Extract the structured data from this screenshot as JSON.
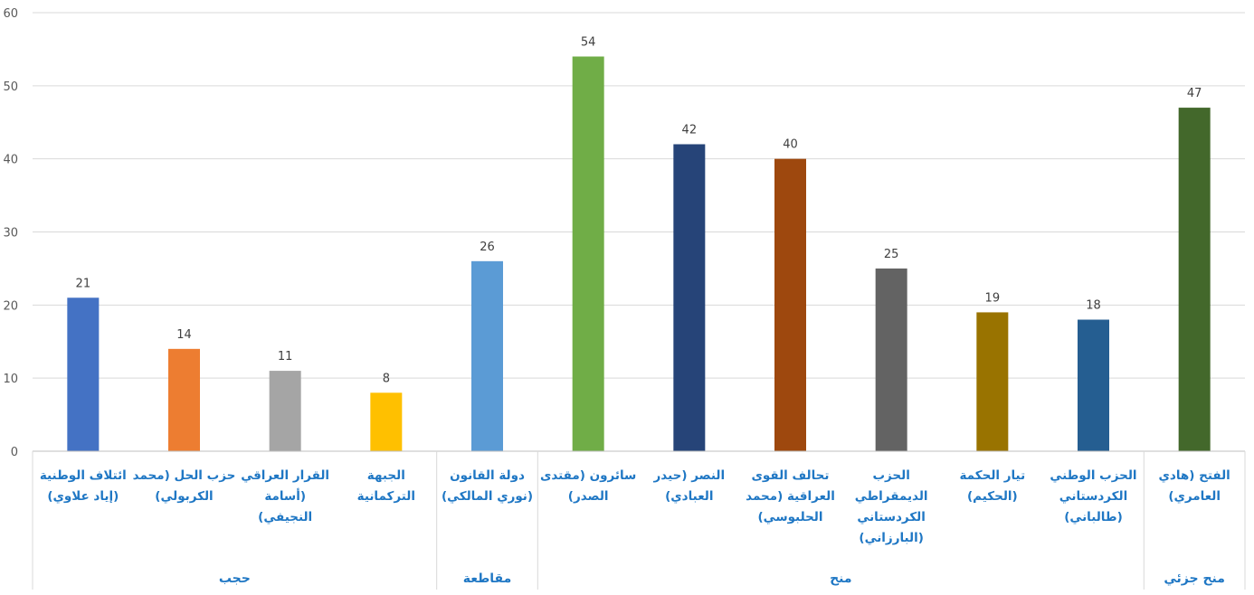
{
  "chart_data": {
    "type": "bar",
    "categories": [
      [
        "ائتلاف الوطنية",
        "(إياد علاوي)"
      ],
      [
        "حزب الحل (محمد",
        "الكربولي)"
      ],
      [
        "القرار العراقي",
        "(أسامة",
        "النجيفي)"
      ],
      [
        "الجبهة",
        "التركمانية"
      ],
      [
        "دولة القانون",
        "(نوري المالكي)"
      ],
      [
        "سائرون (مقتدى",
        "الصدر)"
      ],
      [
        "النصر (حيدر",
        "العبادي)"
      ],
      [
        "تحالف القوى",
        "العراقية (محمد",
        "الحلبوسي)"
      ],
      [
        "الحزب",
        "الديمقراطي",
        "الكردستاني",
        "(البارزاني)"
      ],
      [
        "تيار الحكمة",
        "(الحكيم)"
      ],
      [
        "الحزب الوطني",
        "الكردستاني",
        "(طالباني)"
      ],
      [
        "الفتح (هادي",
        "العامري)"
      ]
    ],
    "values": [
      21,
      14,
      11,
      8,
      26,
      54,
      42,
      40,
      25,
      19,
      18,
      47
    ],
    "data_labels": [
      "21",
      "14",
      "11",
      "8",
      "26",
      "54",
      "42",
      "40",
      "25",
      "19",
      "18",
      "47"
    ],
    "colors": [
      "#4472c4",
      "#ed7d31",
      "#a5a5a5",
      "#ffc000",
      "#5b9bd5",
      "#70ad47",
      "#264478",
      "#9e480e",
      "#636363",
      "#997300",
      "#255e91",
      "#43682b"
    ],
    "groups": [
      {
        "label": "حجب",
        "count": 4
      },
      {
        "label": "مقاطعة",
        "count": 1
      },
      {
        "label": "منح",
        "count": 6
      },
      {
        "label": "منح جزئي",
        "count": 1
      }
    ],
    "ylim": [
      0,
      60
    ],
    "yticks": [
      "0",
      "10",
      "20",
      "30",
      "40",
      "50",
      "60"
    ],
    "grid": true,
    "legend": "none",
    "title": "",
    "xlabel": "",
    "ylabel": ""
  }
}
